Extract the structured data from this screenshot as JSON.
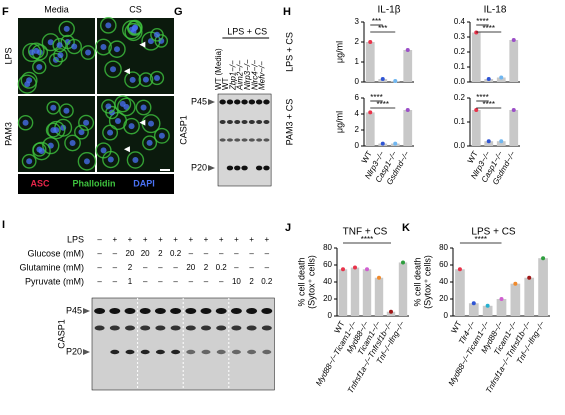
{
  "panel_f": {
    "letter": "F",
    "columns": [
      "Media",
      "CS"
    ],
    "rows": [
      "LPS",
      "PAM3"
    ],
    "legend": [
      "ASC",
      "Phalloidin",
      "DAPI"
    ],
    "legend_colors": [
      "#e8254a",
      "#3ec23e",
      "#4a72f5"
    ]
  },
  "panel_g": {
    "letter": "G",
    "treatment": "LPS + CS",
    "lanes": [
      "WT (Media)",
      "WT",
      "Zbp1−/−",
      "Aim2−/−",
      "Nlrp3−/−",
      "Nlrc4−/−",
      "Mefv−/−"
    ],
    "bands": [
      "P45",
      "P20"
    ],
    "protein": "CASP1"
  },
  "panel_h": {
    "letter": "H",
    "conditions": [
      "LPS + CS",
      "PAM3 + CS"
    ]
  },
  "panel_i": {
    "letter": "I",
    "rows": [
      {
        "label": "LPS",
        "cells": [
          "–",
          "+",
          "+",
          "+",
          "+",
          "+",
          "+",
          "+",
          "+",
          "+",
          "+",
          "+"
        ]
      },
      {
        "label": "Glucose (mM)",
        "cells": [
          "–",
          "–",
          "20",
          "20",
          "2",
          "0.2",
          "–",
          "–",
          "–",
          "–",
          "–",
          "–"
        ]
      },
      {
        "label": "Glutamine (mM)",
        "cells": [
          "–",
          "–",
          "2",
          "–",
          "–",
          "–",
          "20",
          "2",
          "0.2",
          "–",
          "–",
          "–"
        ]
      },
      {
        "label": "Pyruvate (mM)",
        "cells": [
          "–",
          "–",
          "1",
          "–",
          "–",
          "–",
          "–",
          "–",
          "–",
          "10",
          "2",
          "0.2"
        ]
      }
    ],
    "bands": [
      "P45",
      "P20"
    ],
    "protein": "CASP1"
  },
  "chart_data": [
    {
      "type": "bar",
      "title": "IL-1β",
      "ylabel": [
        "μg/ml"
      ],
      "values": [
        2.0,
        0.15,
        0.05,
        1.6
      ],
      "ylim": [
        0,
        3
      ],
      "yticks": [
        0,
        1,
        2,
        3
      ],
      "color": "#c8c8c8",
      "point_colors": [
        "#e8334a",
        "#2f55d4",
        "#6fb6f0",
        "#9b4fc7"
      ],
      "annotations": [
        "***",
        "***"
      ]
    },
    {
      "type": "bar",
      "title": "IL-18",
      "values": [
        0.33,
        0.02,
        0.03,
        0.28
      ],
      "ylim": [
        0,
        0.4
      ],
      "yticks": [
        {
          "value": 0,
          "label": "0.0"
        },
        0.1,
        0.2,
        0.3,
        0.4
      ],
      "color": "#c8c8c8",
      "point_colors": [
        "#e8334a",
        "#2f55d4",
        "#6fb6f0",
        "#9b4fc7"
      ],
      "annotations": [
        "****",
        "****"
      ]
    },
    {
      "type": "bar",
      "ylabel": [
        "μg/ml"
      ],
      "categories": [
        "WT",
        "Nlrp3−/−",
        "Casp1−/−",
        "Gsdmd−/−"
      ],
      "values": [
        4.2,
        0.3,
        0.3,
        4.5
      ],
      "ylim": [
        0,
        6
      ],
      "yticks": [
        0,
        2,
        4,
        6
      ],
      "color": "#c8c8c8",
      "point_colors": [
        "#e8334a",
        "#2f55d4",
        "#6fb6f0",
        "#9b4fc7"
      ],
      "annotations": [
        "****",
        "****"
      ]
    },
    {
      "type": "bar",
      "categories": [
        "WT",
        "Nlrp3−/−",
        "Casp1−/−",
        "Gsdmd−/−"
      ],
      "values": [
        0.15,
        0.02,
        0.02,
        0.15
      ],
      "ylim": [
        0,
        0.2
      ],
      "yticks": [
        {
          "value": 0,
          "label": "0.0"
        },
        0.1,
        0.2
      ],
      "color": "#c8c8c8",
      "point_colors": [
        "#e8334a",
        "#2f55d4",
        "#6fb6f0",
        "#9b4fc7"
      ],
      "annotations": [
        "****",
        "****"
      ]
    },
    {
      "type": "bar",
      "letter": "J",
      "title": "TNF + CS",
      "ylabel": [
        "% cell death",
        "(Sytox⁺ cells)"
      ],
      "categories": [
        "WT",
        "Myd88−/−Ticam1−/−",
        "Myd88−/−",
        "Ticam1−/−",
        "Tnfrsf1a−/−Tnfrsf1b−/−",
        "Tnf−/−Ifng−/−"
      ],
      "values": [
        55,
        57,
        55,
        45,
        5,
        63
      ],
      "ylim": [
        0,
        80
      ],
      "yticks": [
        0,
        20,
        40,
        60,
        80
      ],
      "color": "#c8c8c8",
      "point_colors": [
        "#e8334a",
        "#e8334a",
        "#d05fd0",
        "#f08a2c",
        "#a01818",
        "#2e9e3e"
      ],
      "annotations": [
        "****"
      ]
    },
    {
      "type": "bar",
      "letter": "K",
      "title": "LPS + CS",
      "ylabel": [
        "% cell death",
        "(Sytox⁺ cells)"
      ],
      "categories": [
        "WT",
        "Tlr4−/−",
        "Myd88−/−Ticam1−/−",
        "Myd88−/−",
        "Ticam1−/−",
        "Tnfrsf1a−/−Tnfrsf1b−/−",
        "Tnf−/−Ifng−/−"
      ],
      "values": [
        55,
        15,
        12,
        20,
        38,
        45,
        68
      ],
      "ylim": [
        0,
        80
      ],
      "yticks": [
        0,
        20,
        40,
        60,
        80
      ],
      "color": "#c8c8c8",
      "point_colors": [
        "#e8334a",
        "#2f55d4",
        "#26b0d0",
        "#d05fd0",
        "#f08a2c",
        "#a01818",
        "#2e9e3e"
      ],
      "annotations": [
        "****"
      ]
    }
  ]
}
